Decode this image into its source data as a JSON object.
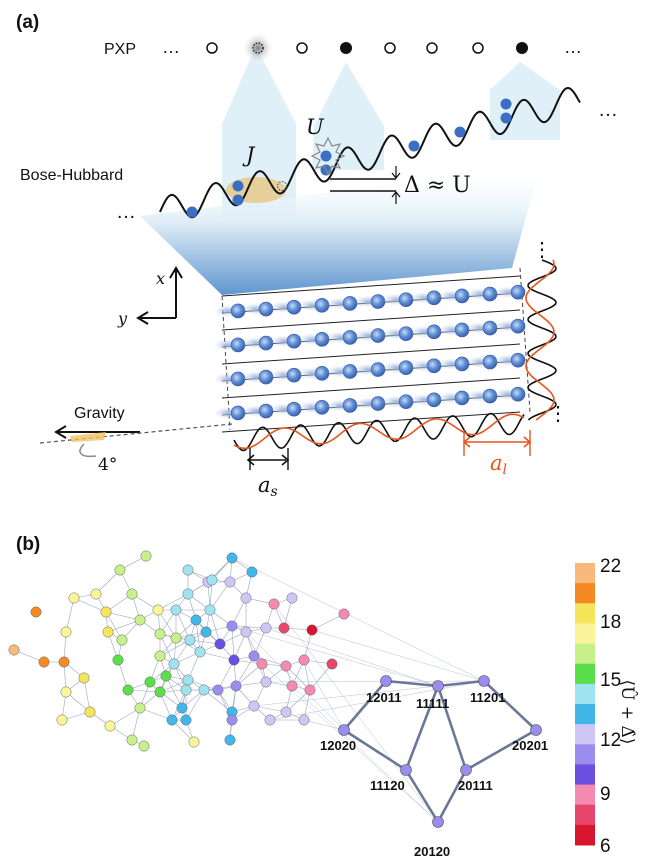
{
  "panel_a": {
    "label": "(a)",
    "pxp_label": "PXP",
    "pxp_sites": [
      "dots",
      "empty",
      "shaded",
      "empty",
      "filled",
      "empty",
      "empty",
      "empty",
      "filled",
      "dots"
    ],
    "bose_hubbard_label": "Bose-Hubbard",
    "hopping_label": "J",
    "interaction_label": "U",
    "tilt_label": "Δ ≈ U",
    "axis_x_label": "x",
    "axis_y_label": "y",
    "gravity_label": "Gravity",
    "angle_label": "4°",
    "short_lattice_label": "a",
    "short_lattice_sub": "s",
    "long_lattice_label": "a",
    "long_lattice_sub": "l",
    "ellipsis": "…",
    "colors": {
      "atom": "#3a6fc4",
      "long_lattice": "#e8541e",
      "well_line": "#111111",
      "pxp_highlight": "#9a9a9a",
      "beam": "#cfe6f2",
      "pair": "#e9c27a"
    }
  },
  "panel_b": {
    "label": "(b)",
    "colorbar_title": "⟨Û + Δ̂⟩",
    "colorbar_ticks": [
      "22",
      "18",
      "15",
      "12",
      "9",
      "6"
    ],
    "colorbar_colors": [
      "#f9b97a",
      "#f58a25",
      "#f6e55a",
      "#fbf59a",
      "#c6f08a",
      "#5adf4a",
      "#9fe3f0",
      "#41b6e8",
      "#cfc6f6",
      "#9b8cf0",
      "#6a4fe0",
      "#f58ab0",
      "#e8456a",
      "#d8152e"
    ],
    "highlight_nodes": [
      "12011",
      "11201",
      "11111",
      "12020",
      "20201",
      "11120",
      "20111",
      "20120"
    ]
  }
}
